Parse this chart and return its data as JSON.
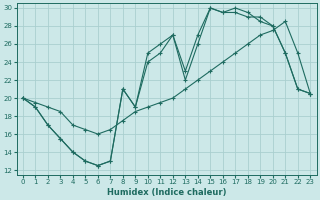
{
  "xlabel": "Humidex (Indice chaleur)",
  "bg_color": "#cce8e8",
  "grid_color": "#aacfcf",
  "line_color": "#1e6b60",
  "xlim": [
    -0.5,
    23.5
  ],
  "ylim": [
    11.5,
    30.5
  ],
  "xticks": [
    0,
    1,
    2,
    3,
    4,
    5,
    6,
    7,
    8,
    9,
    10,
    11,
    12,
    13,
    14,
    15,
    16,
    17,
    18,
    19,
    20,
    21,
    22,
    23
  ],
  "yticks": [
    12,
    14,
    16,
    18,
    20,
    22,
    24,
    26,
    28,
    30
  ],
  "line1": {
    "x": [
      0,
      1,
      2,
      3,
      4,
      5,
      6,
      7,
      8,
      9,
      10,
      11,
      12,
      13,
      14,
      15,
      16,
      17,
      18,
      19,
      20,
      21,
      22,
      23
    ],
    "y": [
      20,
      19,
      17,
      15.5,
      14,
      13,
      12.5,
      13,
      21,
      19,
      24,
      25,
      27,
      23,
      27,
      30,
      29.5,
      29.5,
      29,
      29,
      28,
      25,
      21,
      20.5
    ]
  },
  "line2": {
    "x": [
      0,
      1,
      2,
      3,
      4,
      5,
      6,
      7,
      8,
      9,
      10,
      11,
      12,
      13,
      14,
      15,
      16,
      17,
      18,
      19,
      20,
      21,
      22,
      23
    ],
    "y": [
      20,
      19,
      17,
      15.5,
      14,
      13,
      12.5,
      13,
      21,
      19,
      25,
      26,
      27,
      22,
      26,
      30,
      29.5,
      30,
      29.5,
      28.5,
      28,
      25,
      21,
      20.5
    ]
  },
  "line3": {
    "x": [
      0,
      1,
      2,
      3,
      4,
      5,
      6,
      7,
      8,
      9,
      10,
      11,
      12,
      13,
      14,
      15,
      16,
      17,
      18,
      19,
      20,
      21,
      22,
      23
    ],
    "y": [
      20,
      19.5,
      19,
      18.5,
      17,
      16.5,
      16,
      16.5,
      17.5,
      18.5,
      19,
      19.5,
      20,
      21,
      22,
      23,
      24,
      25,
      26,
      27,
      27.5,
      28.5,
      25,
      20.5
    ]
  }
}
